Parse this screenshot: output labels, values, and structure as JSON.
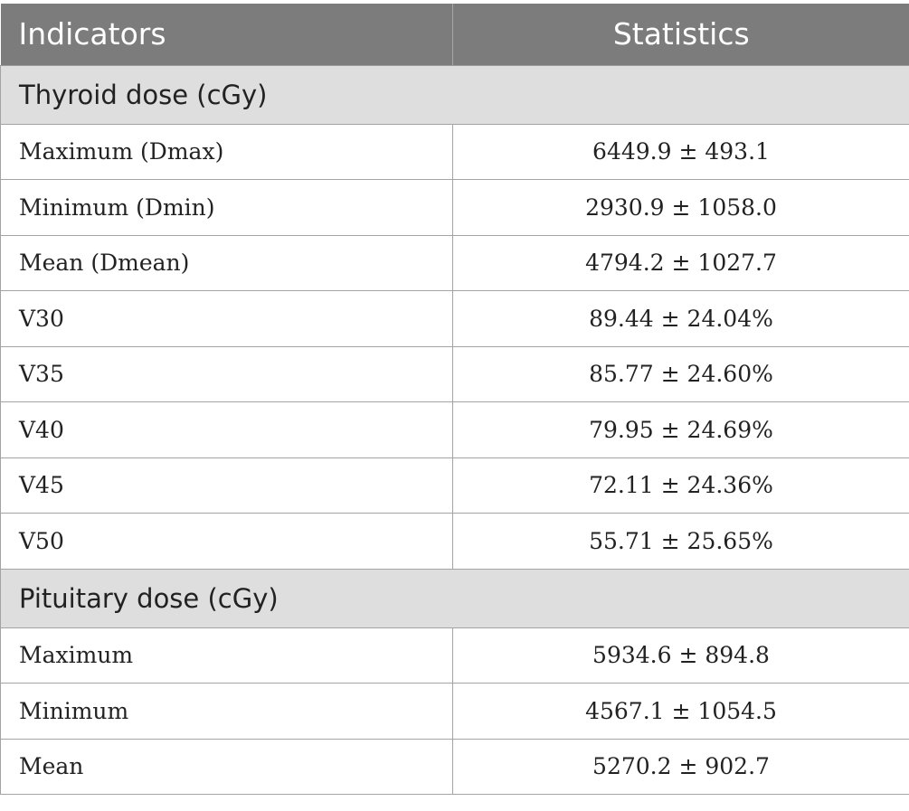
{
  "header": {
    "col1": "Indicators",
    "col2": "Statistics"
  },
  "sections": [
    {
      "title": "Thyroid dose (cGy)",
      "rows": [
        {
          "label": "Maximum (Dmax)",
          "value": "6449.9 ± 493.1"
        },
        {
          "label": "Minimum (Dmin)",
          "value": "2930.9 ± 1058.0"
        },
        {
          "label": "Mean (Dmean)",
          "value": "4794.2 ± 1027.7"
        },
        {
          "label": "V30",
          "value": "89.44 ± 24.04%"
        },
        {
          "label": "V35",
          "value": "85.77 ± 24.60%"
        },
        {
          "label": "V40",
          "value": "79.95 ± 24.69%"
        },
        {
          "label": "V45",
          "value": "72.11 ± 24.36%"
        },
        {
          "label": "V50",
          "value": "55.71 ± 25.65%"
        }
      ]
    },
    {
      "title": "Pituitary dose (cGy)",
      "rows": [
        {
          "label": "Maximum",
          "value": "5934.6 ± 894.8"
        },
        {
          "label": "Minimum",
          "value": "4567.1 ± 1054.5"
        },
        {
          "label": "Mean",
          "value": "5270.2 ± 902.7"
        }
      ]
    }
  ]
}
